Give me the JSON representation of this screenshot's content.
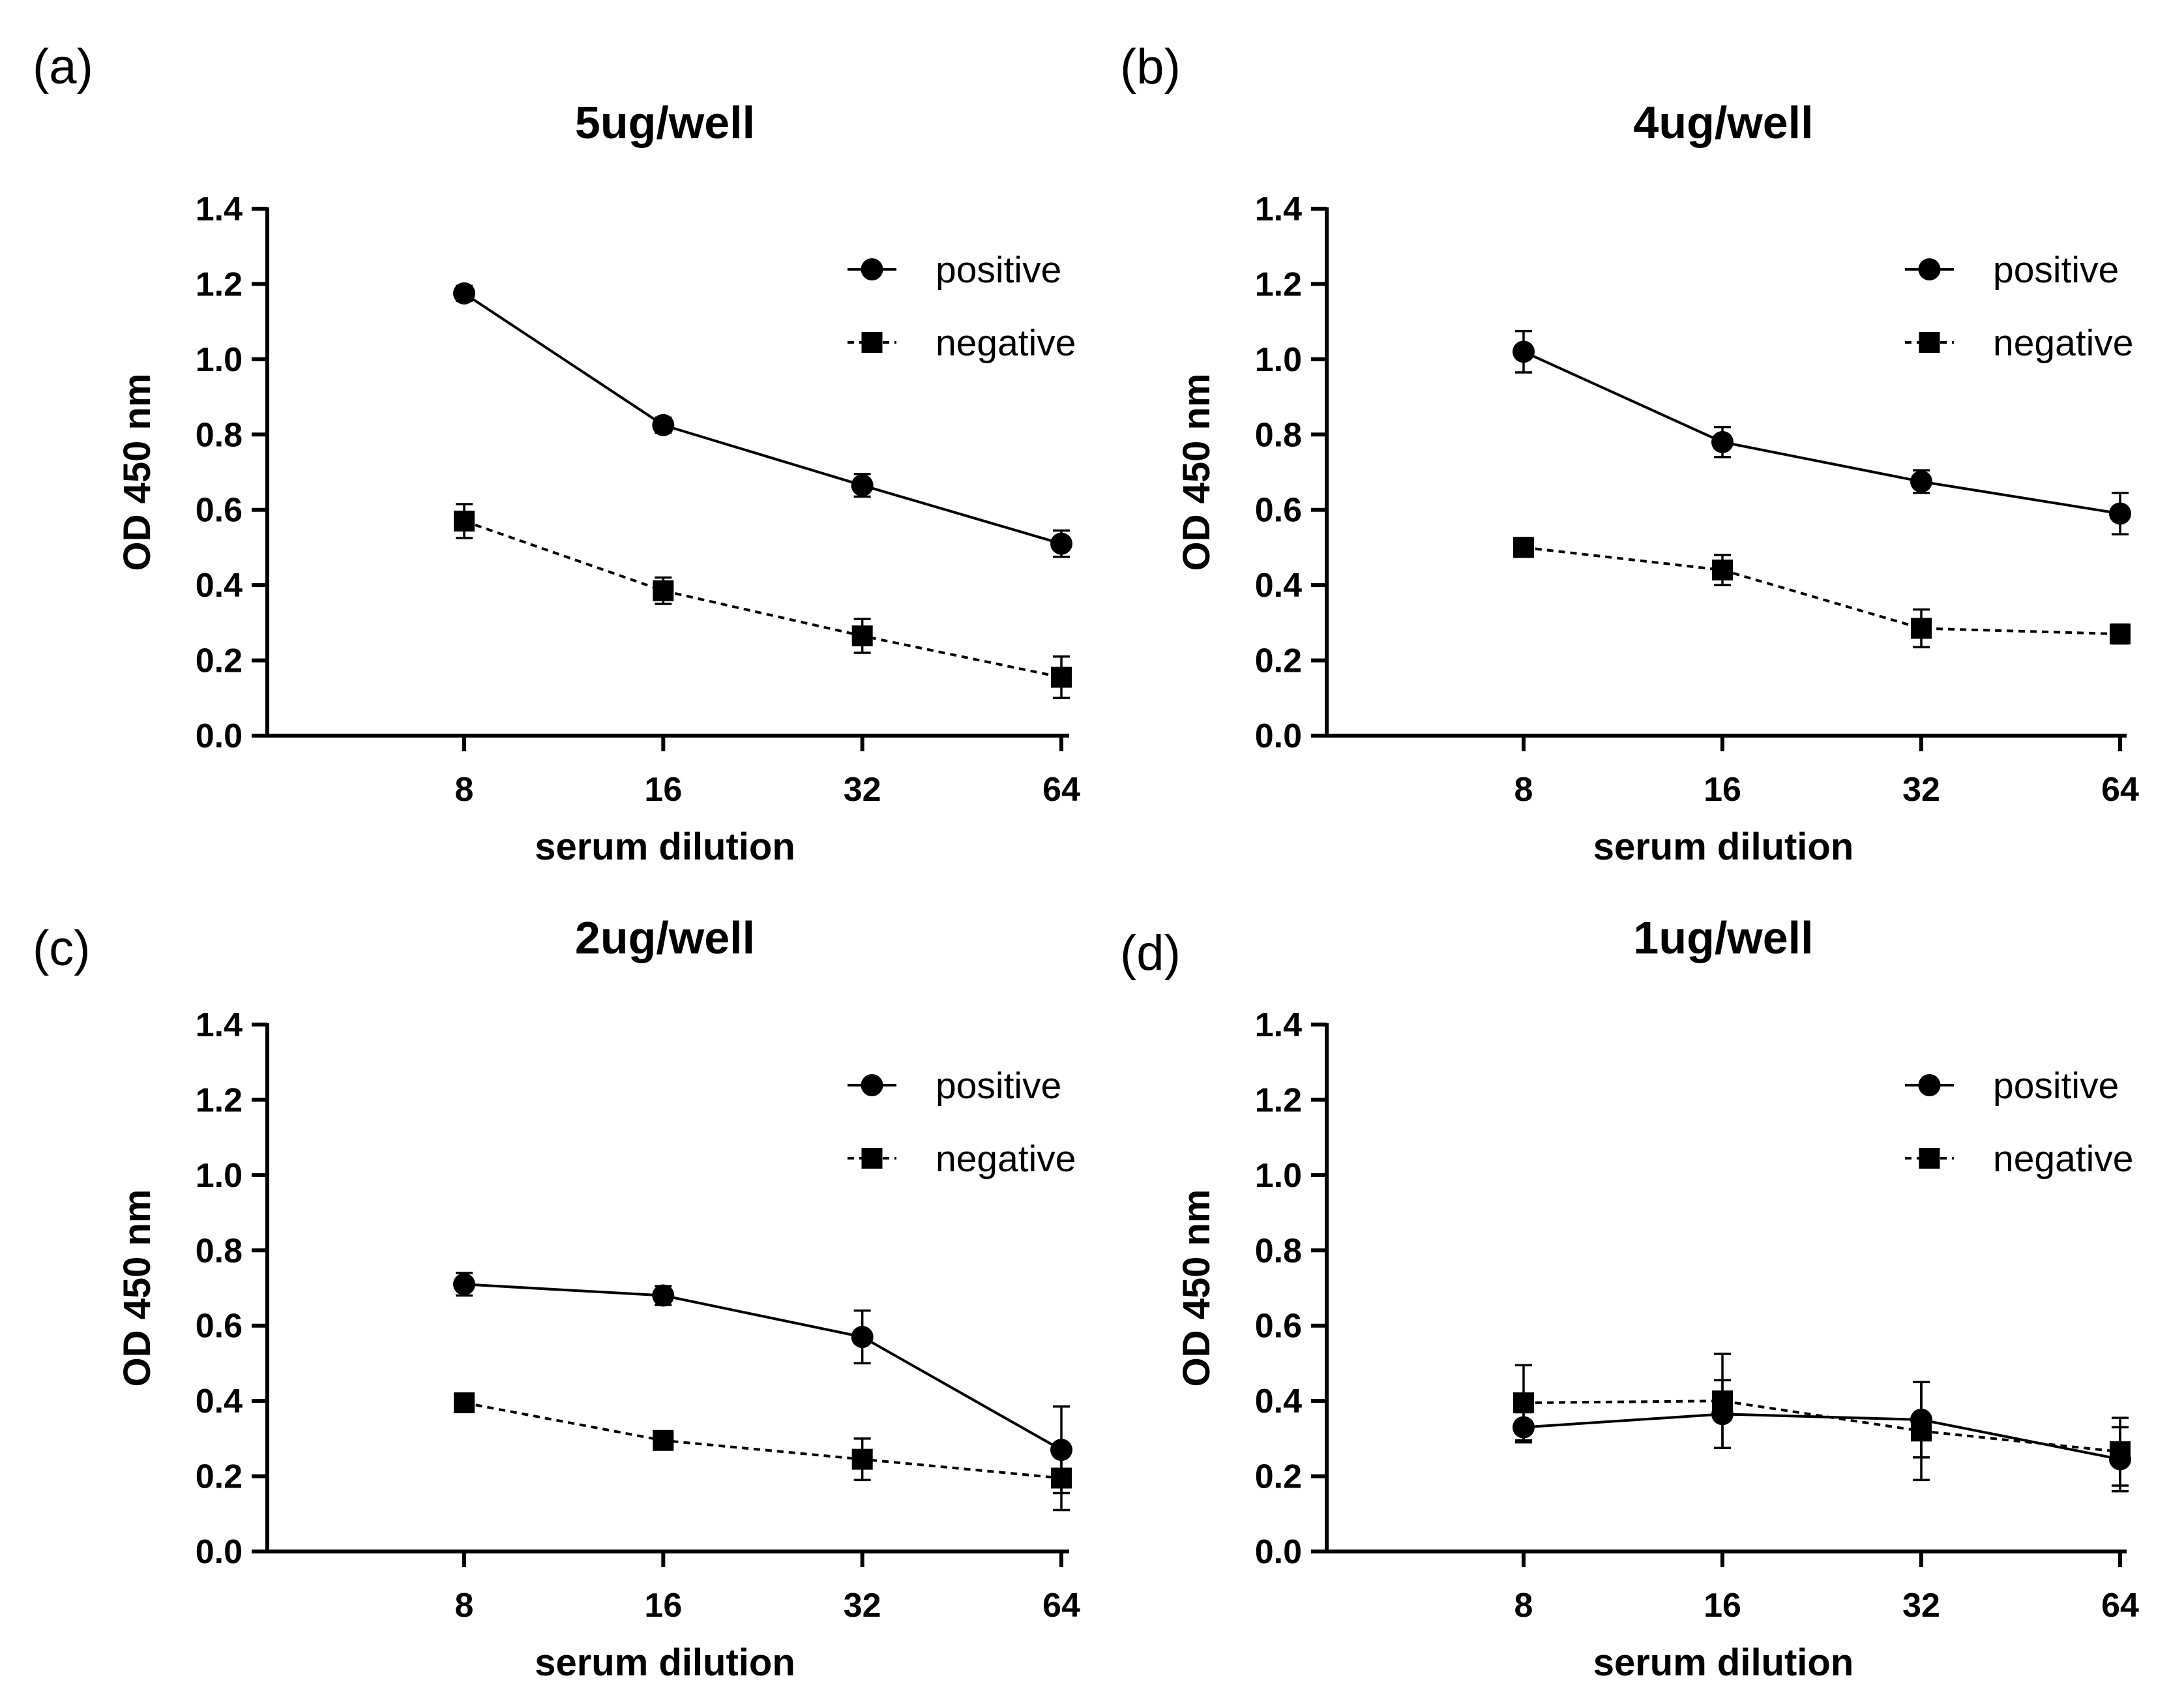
{
  "figure": {
    "panels": [
      {
        "letter": "(a)",
        "chart_index": 0
      },
      {
        "letter": "(b)",
        "chart_index": 1
      },
      {
        "letter": "(c)",
        "chart_index": 2
      },
      {
        "letter": "(d)",
        "chart_index": 3
      }
    ]
  },
  "colors": {
    "foreground": "#000000",
    "background": "#ffffff"
  },
  "chart_data": [
    {
      "type": "line",
      "title": "5ug/well",
      "xlabel": "serum dilution",
      "ylabel": "OD 450 nm",
      "x_scale": "log2",
      "x": [
        8,
        16,
        32,
        64
      ],
      "xticks": [
        "8",
        "16",
        "32",
        "64"
      ],
      "ylim": [
        0.0,
        1.4
      ],
      "yticks": [
        "0.0",
        "0.2",
        "0.4",
        "0.6",
        "0.8",
        "1.0",
        "1.2",
        "1.4"
      ],
      "legend_position": "top-right",
      "series": [
        {
          "name": "positive",
          "marker": "circle",
          "line": "solid",
          "values": [
            1.175,
            0.825,
            0.665,
            0.51
          ],
          "errors": [
            0.02,
            0.02,
            0.03,
            0.035
          ]
        },
        {
          "name": "negative",
          "marker": "square",
          "line": "dotted",
          "values": [
            0.57,
            0.385,
            0.265,
            0.155
          ],
          "errors": [
            0.045,
            0.035,
            0.045,
            0.055
          ]
        }
      ]
    },
    {
      "type": "line",
      "title": "4ug/well",
      "xlabel": "serum dilution",
      "ylabel": "OD 450 nm",
      "x_scale": "log2",
      "x": [
        8,
        16,
        32,
        64
      ],
      "xticks": [
        "8",
        "16",
        "32",
        "64"
      ],
      "ylim": [
        0.0,
        1.4
      ],
      "yticks": [
        "0.0",
        "0.2",
        "0.4",
        "0.6",
        "0.8",
        "1.0",
        "1.2",
        "1.4"
      ],
      "legend_position": "top-right",
      "series": [
        {
          "name": "positive",
          "marker": "circle",
          "line": "solid",
          "values": [
            1.02,
            0.78,
            0.675,
            0.59
          ],
          "errors": [
            0.055,
            0.04,
            0.03,
            0.055
          ]
        },
        {
          "name": "negative",
          "marker": "square",
          "line": "dotted",
          "values": [
            0.5,
            0.44,
            0.285,
            0.27
          ],
          "errors": [
            0.025,
            0.04,
            0.05,
            0.025
          ]
        }
      ]
    },
    {
      "type": "line",
      "title": "2ug/well",
      "xlabel": "serum dilution",
      "ylabel": "OD 450 nm",
      "x_scale": "log2",
      "x": [
        8,
        16,
        32,
        64
      ],
      "xticks": [
        "8",
        "16",
        "32",
        "64"
      ],
      "ylim": [
        0.0,
        1.4
      ],
      "yticks": [
        "0.0",
        "0.2",
        "0.4",
        "0.6",
        "0.8",
        "1.0",
        "1.2",
        "1.4"
      ],
      "legend_position": "top-right",
      "series": [
        {
          "name": "positive",
          "marker": "circle",
          "line": "solid",
          "values": [
            0.71,
            0.68,
            0.57,
            0.27
          ],
          "errors": [
            0.03,
            0.025,
            0.07,
            0.115
          ]
        },
        {
          "name": "negative",
          "marker": "square",
          "line": "dotted",
          "values": [
            0.395,
            0.295,
            0.245,
            0.195
          ],
          "errors": [
            0.01,
            0.01,
            0.055,
            0.085
          ]
        }
      ]
    },
    {
      "type": "line",
      "title": "1ug/well",
      "xlabel": "serum dilution",
      "ylabel": "OD 450 nm",
      "x_scale": "log2",
      "x": [
        8,
        16,
        32,
        64
      ],
      "xticks": [
        "8",
        "16",
        "32",
        "64"
      ],
      "ylim": [
        0.0,
        1.4
      ],
      "yticks": [
        "0.0",
        "0.2",
        "0.4",
        "0.6",
        "0.8",
        "1.0",
        "1.2",
        "1.4"
      ],
      "legend_position": "top-right",
      "series": [
        {
          "name": "positive",
          "marker": "circle",
          "line": "solid",
          "values": [
            0.33,
            0.365,
            0.35,
            0.245
          ],
          "errors": [
            0.04,
            0.09,
            0.1,
            0.085
          ]
        },
        {
          "name": "negative",
          "marker": "square",
          "line": "dotted",
          "values": [
            0.395,
            0.4,
            0.32,
            0.265
          ],
          "errors": [
            0.1,
            0.125,
            0.13,
            0.09
          ]
        }
      ]
    }
  ]
}
